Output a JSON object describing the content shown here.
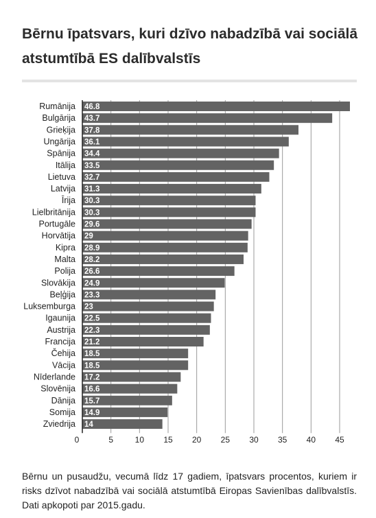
{
  "header": {
    "title": "Bērnu īpatsvars, kuri dzīvo nabadzībā vai sociālā atstumtībā ES dalībvalstīs"
  },
  "footer": {
    "caption": "Bērnu un pusaudžu, vecumā līdz 17 gadiem, īpatsvars procentos, kuriem ir risks dzīvot nabadzībā vai sociālā atstumtībā Eiropas Savienības dalībvalstīs. Dati apkopoti par 2015.gadu."
  },
  "colors": {
    "bar": "#636363",
    "bar_label": "#ffffff",
    "grid": "#9a9a9a",
    "axis": "#222222",
    "text": "#222222"
  },
  "chart_data": {
    "type": "bar",
    "orientation": "horizontal",
    "title": "Bērnu īpatsvars, kuri dzīvo nabadzībā vai sociālā atstumtībā ES dalībvalstīs",
    "xlabel": "",
    "ylabel": "",
    "xlim": [
      0,
      48
    ],
    "xticks": [
      0,
      5,
      10,
      15,
      20,
      25,
      30,
      35,
      40,
      45
    ],
    "grid": true,
    "categories": [
      "Rumānija",
      "Bulgārija",
      "Grieķija",
      "Ungārija",
      "Spānija",
      "Itālija",
      "Lietuva",
      "Latvija",
      "Īrija",
      "Lielbritānija",
      "Portugāle",
      "Horvātija",
      "Kipra",
      "Malta",
      "Polija",
      "Slovākija",
      "Beļģija",
      "Luksemburga",
      "Igaunija",
      "Austrija",
      "Francija",
      "Čehija",
      "Vācija",
      "Nīderlande",
      "Slovēnija",
      "Dānija",
      "Somija",
      "Zviedrija"
    ],
    "values": [
      46.8,
      43.7,
      37.8,
      36.1,
      34.4,
      33.5,
      32.7,
      31.3,
      30.3,
      30.3,
      29.6,
      29,
      28.9,
      28.2,
      26.6,
      24.9,
      23.3,
      23,
      22.5,
      22.3,
      21.2,
      18.5,
      18.5,
      17.2,
      16.6,
      15.7,
      14.9,
      14
    ],
    "value_labels": [
      "46.8",
      "43.7",
      "37.8",
      "36.1",
      "34.4",
      "33.5",
      "32.7",
      "31.3",
      "30.3",
      "30.3",
      "29.6",
      "29",
      "28.9",
      "28.2",
      "26.6",
      "24.9",
      "23.3",
      "23",
      "22.5",
      "22.3",
      "21.2",
      "18.5",
      "18.5",
      "17.2",
      "16.6",
      "15.7",
      "14.9",
      "14"
    ],
    "tick_labels": [
      "0",
      "5",
      "10",
      "15",
      "20",
      "25",
      "30",
      "35",
      "40",
      "45"
    ]
  }
}
